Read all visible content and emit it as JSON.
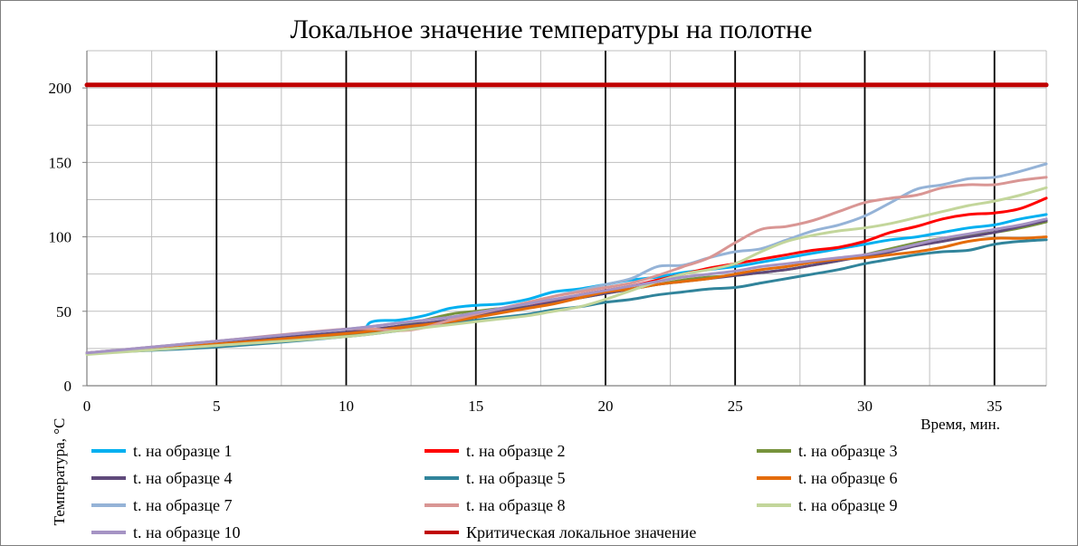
{
  "chart_data": {
    "type": "line",
    "title": "Локальное значение температуры на полотне",
    "xlabel": "Время, мин.",
    "ylabel": "Температура, °С",
    "xlim": [
      0,
      37
    ],
    "ylim": [
      0,
      225
    ],
    "x_ticks": [
      0,
      5,
      10,
      15,
      20,
      25,
      30,
      35
    ],
    "y_ticks": [
      0,
      50,
      100,
      150,
      200
    ],
    "grid": true,
    "legend_position": "bottom",
    "series": [
      {
        "name": "t. на образце 1",
        "color": "#00b0f0",
        "x": [
          0,
          5,
          10,
          11,
          12,
          13,
          14,
          15,
          16,
          17,
          18,
          19,
          20,
          21,
          22,
          23,
          24,
          25,
          26,
          27,
          28,
          29,
          30,
          31,
          32,
          33,
          34,
          35,
          36,
          37
        ],
        "y": [
          22,
          28,
          34,
          43,
          44,
          47,
          52,
          54,
          55,
          58,
          63,
          65,
          68,
          71,
          73,
          76,
          78,
          80,
          83,
          86,
          89,
          92,
          95,
          98,
          100,
          103,
          106,
          108,
          112,
          115
        ]
      },
      {
        "name": "t. на образце 2",
        "color": "#ff0000",
        "x": [
          0,
          5,
          10,
          11,
          12,
          13,
          14,
          15,
          16,
          17,
          18,
          19,
          20,
          21,
          22,
          23,
          24,
          25,
          26,
          27,
          28,
          29,
          30,
          31,
          32,
          33,
          34,
          35,
          36,
          37
        ],
        "y": [
          22,
          28,
          34,
          36,
          38,
          40,
          44,
          47,
          50,
          53,
          57,
          61,
          64,
          67,
          71,
          75,
          79,
          82,
          85,
          88,
          91,
          93,
          97,
          103,
          107,
          112,
          115,
          116,
          119,
          126
        ]
      },
      {
        "name": "t. на образце 3",
        "color": "#77933c",
        "x": [
          0,
          5,
          10,
          12,
          14,
          15,
          16,
          17,
          18,
          19,
          20,
          21,
          22,
          23,
          24,
          25,
          26,
          27,
          28,
          29,
          30,
          31,
          32,
          33,
          34,
          35,
          36,
          37
        ],
        "y": [
          22,
          28,
          34,
          40,
          48,
          50,
          52,
          53,
          56,
          59,
          62,
          65,
          68,
          71,
          73,
          74,
          76,
          78,
          81,
          84,
          88,
          92,
          96,
          99,
          101,
          103,
          106,
          110
        ]
      },
      {
        "name": "t. на образце 4",
        "color": "#604a7b",
        "x": [
          0,
          5,
          10,
          12,
          14,
          15,
          16,
          17,
          18,
          19,
          20,
          21,
          22,
          23,
          24,
          25,
          26,
          27,
          28,
          29,
          30,
          31,
          32,
          33,
          34,
          35,
          36,
          37
        ],
        "y": [
          22,
          29,
          36,
          40,
          44,
          47,
          50,
          53,
          56,
          59,
          62,
          65,
          68,
          70,
          72,
          74,
          76,
          78,
          81,
          84,
          87,
          90,
          94,
          97,
          100,
          103,
          107,
          111
        ]
      },
      {
        "name": "t. на образце 5",
        "color": "#31849b",
        "x": [
          0,
          5,
          10,
          12,
          14,
          15,
          16,
          17,
          18,
          19,
          20,
          21,
          22,
          23,
          24,
          25,
          26,
          27,
          28,
          29,
          30,
          31,
          32,
          33,
          34,
          35,
          36,
          37
        ],
        "y": [
          22,
          26,
          33,
          37,
          42,
          44,
          46,
          48,
          51,
          53,
          56,
          58,
          61,
          63,
          65,
          66,
          69,
          72,
          75,
          78,
          82,
          85,
          88,
          90,
          91,
          95,
          97,
          98
        ]
      },
      {
        "name": "t. на образце 6",
        "color": "#e46c0a",
        "x": [
          0,
          5,
          10,
          12,
          14,
          15,
          16,
          17,
          18,
          19,
          20,
          21,
          22,
          23,
          24,
          25,
          26,
          27,
          28,
          29,
          30,
          31,
          32,
          33,
          34,
          35,
          36,
          37
        ],
        "y": [
          22,
          28,
          35,
          39,
          43,
          46,
          49,
          52,
          55,
          59,
          63,
          65,
          68,
          70,
          72,
          75,
          78,
          80,
          83,
          85,
          86,
          88,
          90,
          93,
          97,
          99,
          99,
          100
        ]
      },
      {
        "name": "t. на образце 7",
        "color": "#95b3d7",
        "x": [
          0,
          5,
          10,
          12,
          14,
          15,
          16,
          17,
          18,
          19,
          20,
          21,
          22,
          23,
          24,
          25,
          26,
          27,
          28,
          29,
          30,
          31,
          32,
          33,
          34,
          35,
          36,
          37
        ],
        "y": [
          22,
          30,
          38,
          42,
          46,
          49,
          52,
          56,
          60,
          64,
          68,
          72,
          80,
          81,
          86,
          90,
          92,
          98,
          104,
          108,
          114,
          123,
          132,
          135,
          139,
          140,
          144,
          149
        ]
      },
      {
        "name": "t. на образце 8",
        "color": "#d99694",
        "x": [
          0,
          5,
          10,
          12,
          13,
          14,
          15,
          16,
          17,
          18,
          19,
          20,
          21,
          22,
          23,
          24,
          25,
          26,
          27,
          28,
          29,
          30,
          31,
          32,
          33,
          34,
          35,
          36,
          37
        ],
        "y": [
          22,
          30,
          38,
          37,
          39,
          44,
          48,
          52,
          56,
          60,
          63,
          66,
          69,
          74,
          80,
          86,
          96,
          105,
          107,
          111,
          117,
          123,
          126,
          128,
          133,
          135,
          135,
          138,
          140
        ]
      },
      {
        "name": "t. на образце 9",
        "color": "#c3d69b",
        "x": [
          0,
          5,
          10,
          12,
          14,
          15,
          16,
          17,
          18,
          19,
          20,
          21,
          22,
          23,
          24,
          25,
          26,
          27,
          28,
          29,
          30,
          31,
          32,
          33,
          34,
          35,
          36,
          37
        ],
        "y": [
          21,
          27,
          33,
          37,
          41,
          43,
          45,
          47,
          50,
          53,
          58,
          64,
          70,
          75,
          78,
          82,
          90,
          97,
          101,
          104,
          106,
          109,
          113,
          117,
          121,
          124,
          128,
          133
        ]
      },
      {
        "name": "t. на образце 10",
        "color": "#a593c4",
        "x": [
          0,
          5,
          10,
          12,
          14,
          15,
          16,
          17,
          18,
          19,
          20,
          21,
          22,
          23,
          24,
          25,
          26,
          27,
          28,
          29,
          30,
          31,
          32,
          33,
          34,
          35,
          36,
          37
        ],
        "y": [
          22,
          30,
          38,
          42,
          46,
          49,
          52,
          55,
          58,
          61,
          64,
          67,
          70,
          73,
          75,
          77,
          80,
          82,
          84,
          86,
          88,
          91,
          95,
          99,
          102,
          105,
          108,
          112
        ]
      },
      {
        "name": "Критическая локальное значение",
        "color": "#c00000",
        "x": [
          0,
          37
        ],
        "y": [
          202,
          202
        ]
      }
    ]
  }
}
